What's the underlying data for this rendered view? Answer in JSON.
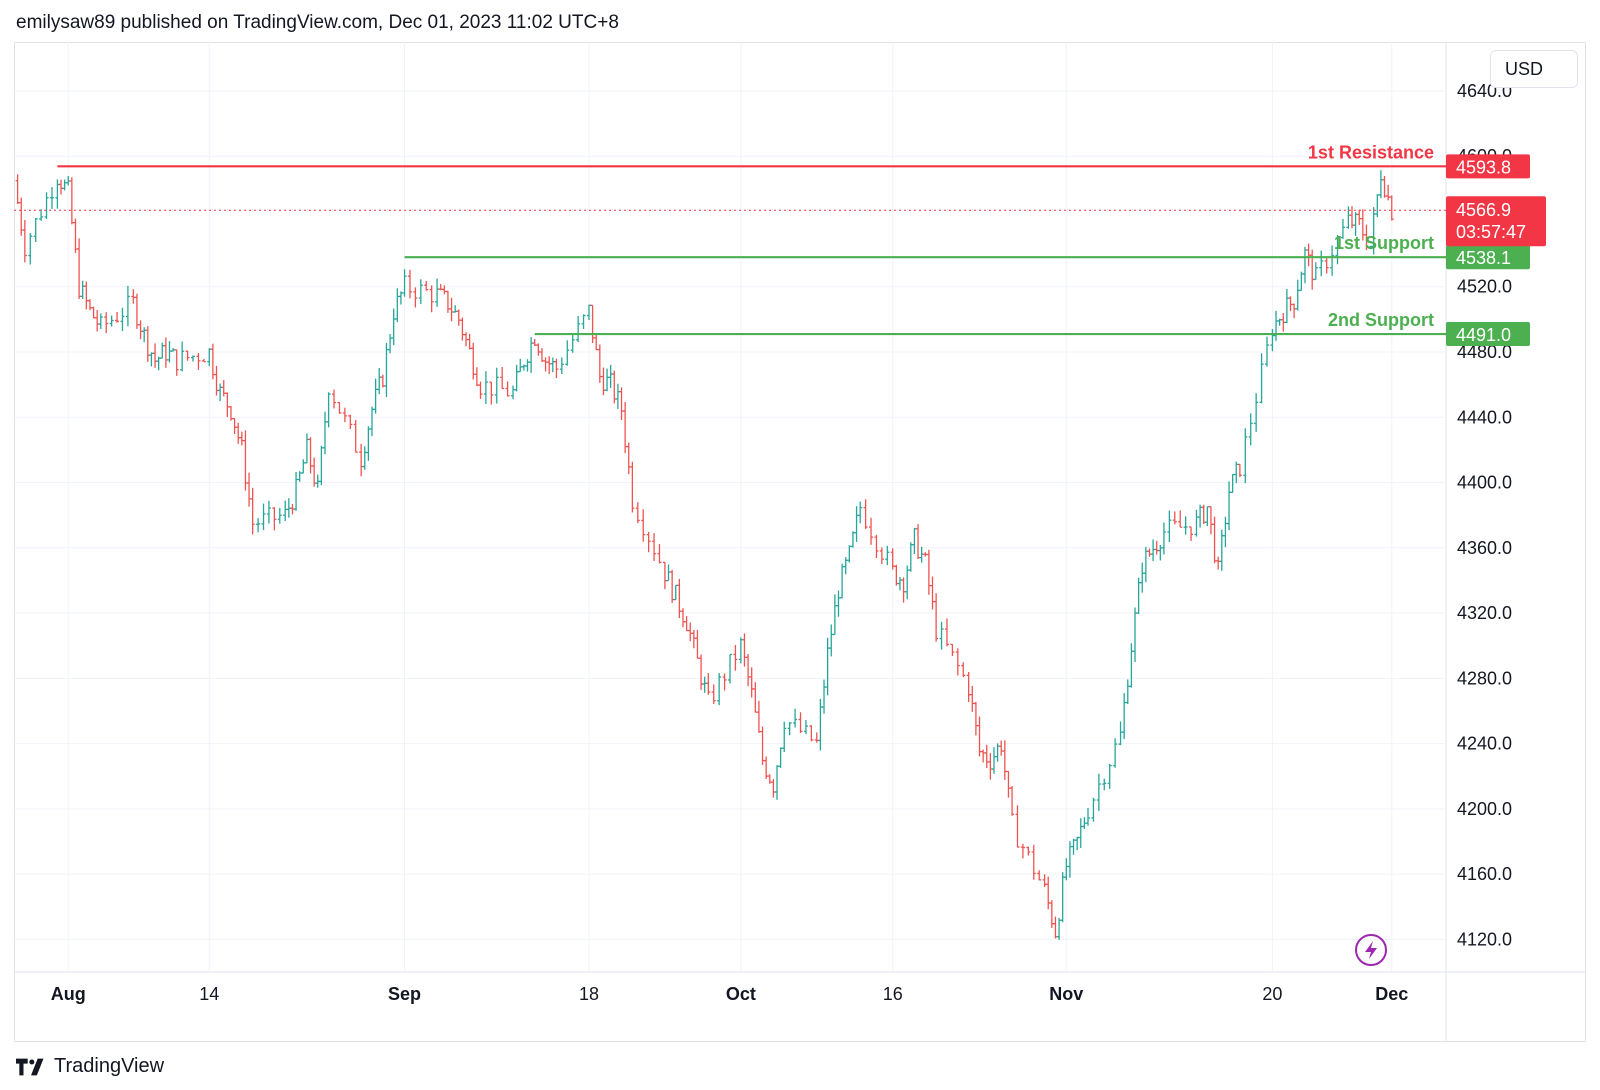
{
  "header": {
    "attribution": "emilysaw89 published on TradingView.com, Dec 01, 2023 11:02 UTC+8"
  },
  "currency_button": "USD",
  "footer": {
    "brand": "TradingView"
  },
  "icons": {
    "footer_logo": "tradingview-logo-icon",
    "replay": "lightning-replay-icon"
  },
  "colors": {
    "up": "#26a69a",
    "down": "#ef5350",
    "resistance": "#f23645",
    "support": "#4caf50",
    "price": "#f23645"
  },
  "chart_data": {
    "type": "candlestick",
    "title": "",
    "xlabel": "",
    "ylabel": "",
    "ylim": [
      4100,
      4670
    ],
    "y_ticks": [
      4640.0,
      4600.0,
      4520.0,
      4480.0,
      4440.0,
      4400.0,
      4360.0,
      4320.0,
      4280.0,
      4240.0,
      4200.0,
      4160.0,
      4120.0
    ],
    "x_ticks": [
      {
        "label": "Aug",
        "bold": true,
        "date": "2023-08-01"
      },
      {
        "label": "14",
        "bold": false,
        "date": "2023-08-14"
      },
      {
        "label": "Sep",
        "bold": true,
        "date": "2023-09-01"
      },
      {
        "label": "18",
        "bold": false,
        "date": "2023-09-18"
      },
      {
        "label": "Oct",
        "bold": true,
        "date": "2023-10-02"
      },
      {
        "label": "16",
        "bold": false,
        "date": "2023-10-16"
      },
      {
        "label": "Nov",
        "bold": true,
        "date": "2023-11-01"
      },
      {
        "label": "20",
        "bold": false,
        "date": "2023-11-20"
      },
      {
        "label": "Dec",
        "bold": true,
        "date": "2023-12-01"
      }
    ],
    "x_range": [
      "2023-07-27",
      "2023-12-06"
    ],
    "grid": true,
    "series": [
      {
        "close_path": [
          [
            "2023-07-27",
            4585
          ],
          [
            "2023-07-28",
            4545
          ],
          [
            "2023-07-31",
            4588
          ],
          [
            "2023-08-01",
            4578
          ],
          [
            "2023-08-02",
            4520
          ],
          [
            "2023-08-03",
            4505
          ],
          [
            "2023-08-04",
            4495
          ],
          [
            "2023-08-07",
            4510
          ],
          [
            "2023-08-08",
            4490
          ],
          [
            "2023-08-09",
            4475
          ],
          [
            "2023-08-10",
            4480
          ],
          [
            "2023-08-11",
            4475
          ],
          [
            "2023-08-14",
            4480
          ],
          [
            "2023-08-15",
            4455
          ],
          [
            "2023-08-16",
            4445
          ],
          [
            "2023-08-17",
            4420
          ],
          [
            "2023-08-18",
            4375
          ],
          [
            "2023-08-21",
            4380
          ],
          [
            "2023-08-22",
            4395
          ],
          [
            "2023-08-23",
            4420
          ],
          [
            "2023-08-24",
            4395
          ],
          [
            "2023-08-25",
            4460
          ],
          [
            "2023-08-28",
            4415
          ],
          [
            "2023-08-29",
            4445
          ],
          [
            "2023-08-30",
            4465
          ],
          [
            "2023-08-31",
            4505
          ],
          [
            "2023-09-01",
            4520
          ],
          [
            "2023-09-04",
            4515
          ],
          [
            "2023-09-05",
            4510
          ],
          [
            "2023-09-06",
            4500
          ],
          [
            "2023-09-07",
            4480
          ],
          [
            "2023-09-08",
            4460
          ],
          [
            "2023-09-11",
            4455
          ],
          [
            "2023-09-12",
            4475
          ],
          [
            "2023-09-13",
            4490
          ],
          [
            "2023-09-14",
            4475
          ],
          [
            "2023-09-15",
            4470
          ],
          [
            "2023-09-18",
            4505
          ],
          [
            "2023-09-19",
            4465
          ],
          [
            "2023-09-20",
            4460
          ],
          [
            "2023-09-21",
            4445
          ],
          [
            "2023-09-22",
            4390
          ],
          [
            "2023-09-25",
            4345
          ],
          [
            "2023-09-26",
            4330
          ],
          [
            "2023-09-27",
            4315
          ],
          [
            "2023-09-28",
            4290
          ],
          [
            "2023-09-29",
            4265
          ],
          [
            "2023-10-02",
            4300
          ],
          [
            "2023-10-03",
            4270
          ],
          [
            "2023-10-04",
            4230
          ],
          [
            "2023-10-05",
            4215
          ],
          [
            "2023-10-06",
            4255
          ],
          [
            "2023-10-09",
            4240
          ],
          [
            "2023-10-10",
            4295
          ],
          [
            "2023-10-11",
            4335
          ],
          [
            "2023-10-12",
            4355
          ],
          [
            "2023-10-13",
            4385
          ],
          [
            "2023-10-16",
            4345
          ],
          [
            "2023-10-17",
            4340
          ],
          [
            "2023-10-18",
            4365
          ],
          [
            "2023-10-19",
            4350
          ],
          [
            "2023-10-20",
            4310
          ],
          [
            "2023-10-23",
            4275
          ],
          [
            "2023-10-24",
            4235
          ],
          [
            "2023-10-25",
            4230
          ],
          [
            "2023-10-26",
            4240
          ],
          [
            "2023-10-27",
            4190
          ],
          [
            "2023-10-30",
            4150
          ],
          [
            "2023-10-31",
            4125
          ],
          [
            "2023-11-01",
            4165
          ],
          [
            "2023-11-02",
            4180
          ],
          [
            "2023-11-03",
            4200
          ],
          [
            "2023-11-06",
            4245
          ],
          [
            "2023-11-07",
            4300
          ],
          [
            "2023-11-08",
            4350
          ],
          [
            "2023-11-09",
            4360
          ],
          [
            "2023-11-10",
            4370
          ],
          [
            "2023-11-13",
            4375
          ],
          [
            "2023-11-14",
            4385
          ],
          [
            "2023-11-15",
            4345
          ],
          [
            "2023-11-16",
            4395
          ],
          [
            "2023-11-17",
            4410
          ],
          [
            "2023-11-20",
            4495
          ],
          [
            "2023-11-21",
            4505
          ],
          [
            "2023-11-22",
            4512
          ],
          [
            "2023-11-23",
            4540
          ],
          [
            "2023-11-24",
            4525
          ],
          [
            "2023-11-27",
            4560
          ],
          [
            "2023-11-28",
            4558
          ],
          [
            "2023-11-29",
            4545
          ],
          [
            "2023-11-30",
            4590
          ],
          [
            "2023-12-01",
            4566.9
          ]
        ]
      }
    ],
    "annotations": [
      {
        "label": "1st Resistance",
        "value": 4593.8,
        "from": "2023-07-31",
        "kind": "resistance"
      },
      {
        "label": "1st Support",
        "value": 4538.1,
        "from": "2023-09-01",
        "kind": "support"
      },
      {
        "label": "2nd Support",
        "value": 4491.0,
        "from": "2023-09-13",
        "kind": "support"
      }
    ],
    "last_price": {
      "value": 4566.9,
      "label": "4566.9",
      "countdown": "03:57:47"
    },
    "price_labels": {
      "resistance_1": "4593.8",
      "support_1": "4538.1",
      "support_2": "4491.0"
    }
  }
}
